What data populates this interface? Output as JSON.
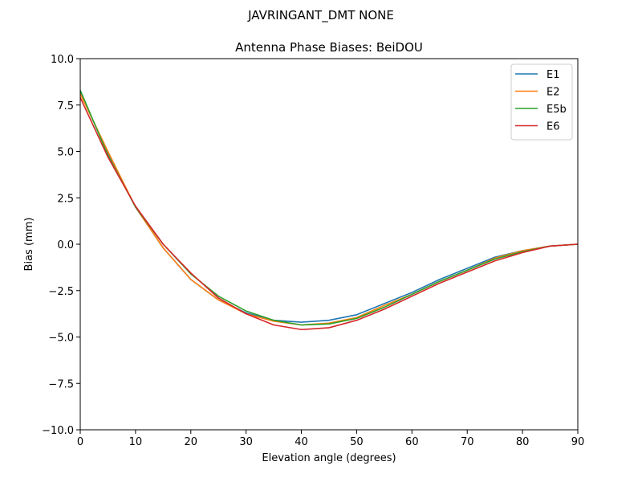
{
  "chart_data": {
    "type": "line",
    "suptitle": "JAVRINGANT_DMT  NONE",
    "title": "Antenna Phase Biases: BeiDOU",
    "xlabel": "Elevation angle (degrees)",
    "ylabel": "Bias (mm)",
    "xlim": [
      0,
      90
    ],
    "ylim": [
      -10,
      10
    ],
    "xticks": [
      0,
      10,
      20,
      30,
      40,
      50,
      60,
      70,
      80,
      90
    ],
    "yticks": [
      10.0,
      7.5,
      5.0,
      2.5,
      0.0,
      -2.5,
      -5.0,
      -7.5,
      -10.0
    ],
    "xtick_labels": [
      "0",
      "10",
      "20",
      "30",
      "40",
      "50",
      "60",
      "70",
      "80",
      "90"
    ],
    "ytick_labels": [
      "10.0",
      "7.5",
      "5.0",
      "2.5",
      "0.0",
      "−2.5",
      "−5.0",
      "−7.5",
      "−10.0"
    ],
    "grid": false,
    "legend_position": "top-right",
    "x": [
      0,
      5,
      10,
      15,
      20,
      25,
      30,
      35,
      40,
      45,
      50,
      55,
      60,
      65,
      70,
      75,
      80,
      85,
      90
    ],
    "series": [
      {
        "name": "E1",
        "color": "#1f77b4",
        "values": [
          8.2,
          4.9,
          2.0,
          -0.2,
          -1.9,
          -3.0,
          -3.7,
          -4.1,
          -4.2,
          -4.1,
          -3.8,
          -3.2,
          -2.6,
          -1.9,
          -1.3,
          -0.7,
          -0.35,
          -0.1,
          0.0
        ]
      },
      {
        "name": "E2",
        "color": "#ff7f0e",
        "values": [
          8.1,
          5.0,
          2.0,
          -0.2,
          -1.9,
          -3.0,
          -3.75,
          -4.15,
          -4.35,
          -4.25,
          -3.95,
          -3.3,
          -2.7,
          -2.0,
          -1.4,
          -0.75,
          -0.35,
          -0.1,
          0.0
        ]
      },
      {
        "name": "E5b",
        "color": "#2ca02c",
        "values": [
          8.3,
          4.8,
          2.0,
          0.0,
          -1.6,
          -2.8,
          -3.6,
          -4.1,
          -4.35,
          -4.3,
          -4.0,
          -3.4,
          -2.7,
          -2.0,
          -1.4,
          -0.8,
          -0.4,
          -0.1,
          0.0
        ]
      },
      {
        "name": "E6",
        "color": "#d62728",
        "values": [
          7.9,
          4.7,
          2.05,
          0.0,
          -1.55,
          -2.9,
          -3.75,
          -4.35,
          -4.6,
          -4.5,
          -4.1,
          -3.5,
          -2.8,
          -2.1,
          -1.5,
          -0.9,
          -0.45,
          -0.1,
          0.0
        ]
      }
    ]
  }
}
